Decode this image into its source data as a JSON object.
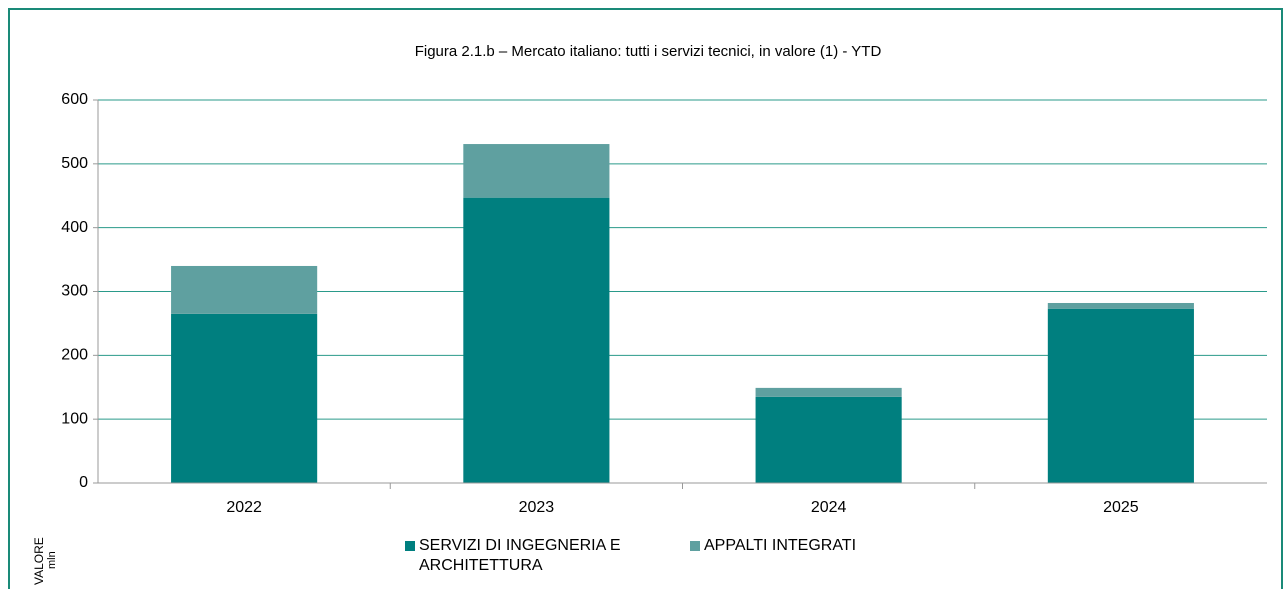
{
  "chart_data": {
    "type": "stacked_bar",
    "title": "Figura 2.1.b – Mercato italiano: tutti i servizi tecnici, in valore (1) - YTD",
    "y_label": "VALORE",
    "y_unit": "mln",
    "categories": [
      "2022",
      "2023",
      "2024",
      "2025"
    ],
    "series": [
      {
        "name": "SERVIZI DI INGEGNERIA E ARCHITETTURA",
        "color": "#007f7f",
        "values": [
          265,
          447,
          135,
          273
        ]
      },
      {
        "name": "APPALTI INTEGRATI",
        "color": "#5fa0a0",
        "values": [
          75,
          84,
          14,
          9
        ]
      }
    ],
    "ylim": [
      0,
      600
    ],
    "yticks": [
      0,
      100,
      200,
      300,
      400,
      500,
      600
    ],
    "grid": true,
    "legend": "bottom"
  }
}
